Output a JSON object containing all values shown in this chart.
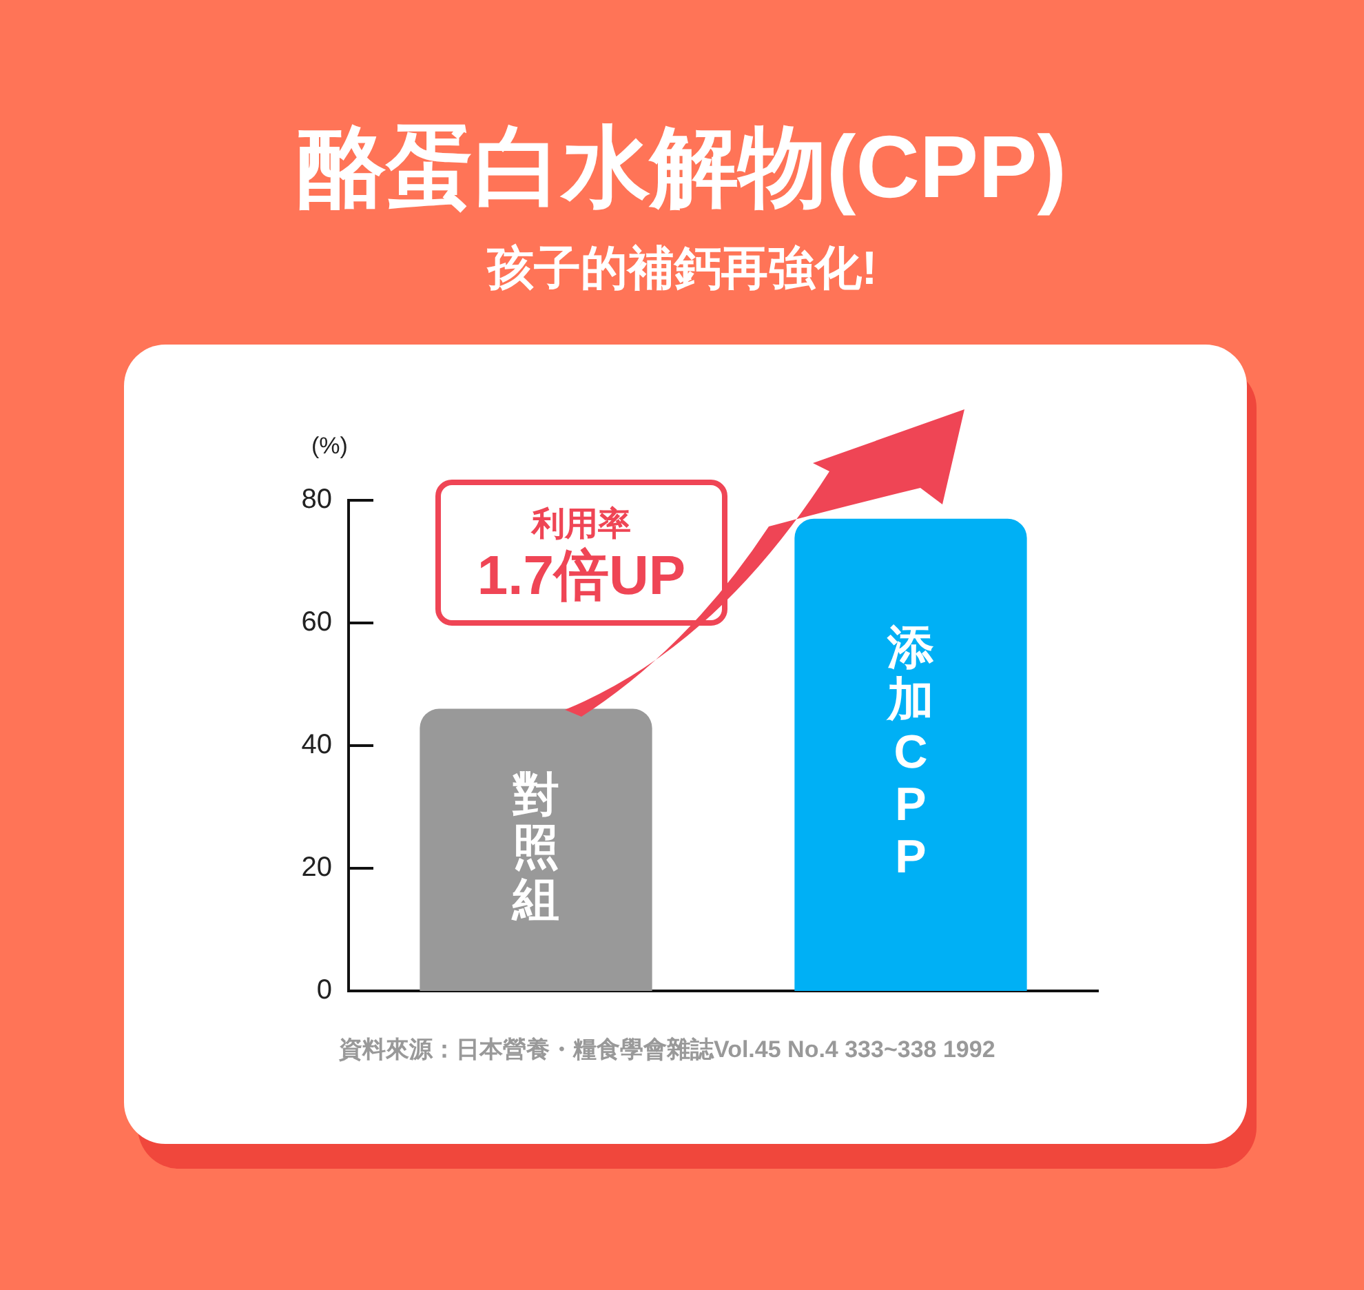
{
  "chart_data": {
    "type": "bar",
    "title": "酪蛋白水解物(CPP)",
    "subtitle": "孩子的補鈣再強化!",
    "ylabel": "(%)",
    "categories": [
      "對照組",
      "添加CPP"
    ],
    "values": [
      46,
      77
    ],
    "colors": [
      "#999999",
      "#00b0f5"
    ],
    "ylim": [
      0,
      80
    ],
    "yticks": [
      0,
      20,
      40,
      60,
      80
    ],
    "grid": false,
    "legend": false,
    "tick_labels": "y",
    "annotations": [
      "利用率",
      "1.7倍UP",
      "資料來源：日本營養・糧食學會雜誌Vol.45 No.4 333~338 1992"
    ]
  }
}
